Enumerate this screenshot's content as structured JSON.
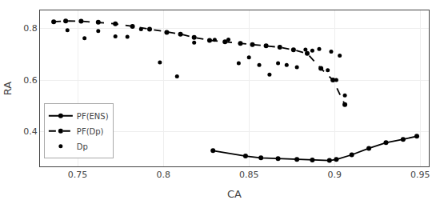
{
  "chart_data": {
    "type": "line",
    "xlabel": "CA",
    "ylabel": "RA",
    "xlim": [
      0.728,
      0.955
    ],
    "ylim": [
      0.265,
      0.87
    ],
    "xticks": [
      0.75,
      0.8,
      0.85,
      0.9,
      0.95
    ],
    "yticks": [
      0.4,
      0.6,
      0.8
    ],
    "grid": true,
    "legend": "lower left",
    "series": [
      {
        "name": "PF(ENS)",
        "type": "line",
        "color": "#000000",
        "marker": "circle",
        "line_style": "solid",
        "x": [
          0.829,
          0.848,
          0.857,
          0.867,
          0.878,
          0.887,
          0.897,
          0.901,
          0.91,
          0.92,
          0.93,
          0.94,
          0.948
        ],
        "values": [
          0.326,
          0.305,
          0.298,
          0.295,
          0.292,
          0.29,
          0.288,
          0.292,
          0.31,
          0.335,
          0.357,
          0.37,
          0.382
        ]
      },
      {
        "name": "PF(Dp)",
        "type": "line",
        "color": "#000000",
        "marker": "circle",
        "line_style": "dashed",
        "x": [
          0.736,
          0.743,
          0.752,
          0.762,
          0.772,
          0.782,
          0.792,
          0.802,
          0.81,
          0.818,
          0.827,
          0.836,
          0.845,
          0.852,
          0.86,
          0.868,
          0.876,
          0.884,
          0.892,
          0.899,
          0.906
        ],
        "values": [
          0.826,
          0.829,
          0.828,
          0.824,
          0.818,
          0.808,
          0.797,
          0.785,
          0.778,
          0.765,
          0.754,
          0.748,
          0.742,
          0.737,
          0.733,
          0.727,
          0.717,
          0.703,
          0.645,
          0.6,
          0.505
        ]
      },
      {
        "name": "Dp",
        "type": "scatter",
        "color": "#000000",
        "marker": "circle",
        "line_style": "none",
        "x": [
          0.744,
          0.754,
          0.762,
          0.772,
          0.779,
          0.787,
          0.798,
          0.808,
          0.818,
          0.83,
          0.838,
          0.844,
          0.85,
          0.856,
          0.862,
          0.867,
          0.872,
          0.878,
          0.883,
          0.887,
          0.891,
          0.896,
          0.901,
          0.906,
          0.898,
          0.903
        ],
        "values": [
          0.793,
          0.762,
          0.79,
          0.769,
          0.768,
          0.797,
          0.668,
          0.614,
          0.745,
          0.756,
          0.757,
          0.665,
          0.688,
          0.658,
          0.621,
          0.665,
          0.658,
          0.65,
          0.718,
          0.714,
          0.72,
          0.638,
          0.6,
          0.54,
          0.71,
          0.695
        ]
      }
    ]
  }
}
